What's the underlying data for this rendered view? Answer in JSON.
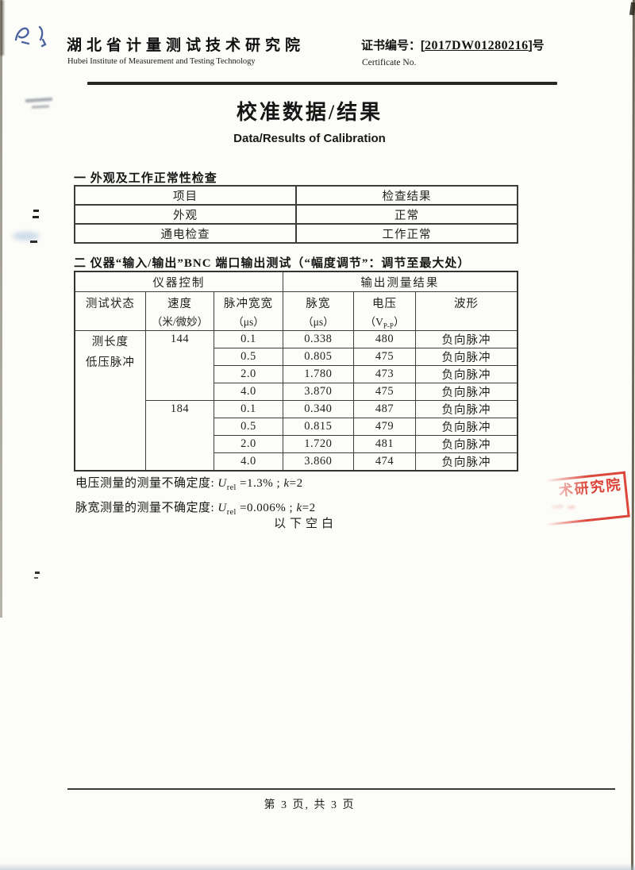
{
  "header": {
    "institute_zh": "湖北省计量测试技术研究院",
    "institute_en": "Hubei Institute of Measurement and Testing Technology",
    "cert_label": "证书编号：",
    "cert_open": "[",
    "cert_number": "2017DW01280216",
    "cert_close": "]",
    "cert_suffix": "号",
    "cert_label_en": "Certificate No."
  },
  "title_zh": "校准数据/结果",
  "title_en": "Data/Results of Calibration",
  "section1": {
    "heading": "一 外观及工作正常性检查",
    "table": {
      "headers": [
        "项目",
        "检查结果"
      ],
      "rows": [
        [
          "外观",
          "正常"
        ],
        [
          "通电检查",
          "工作正常"
        ]
      ]
    }
  },
  "section2": {
    "heading": "二 仪器“输入/输出”BNC 端口输出测试（“幅度调节”：调节至最大处）",
    "table": {
      "group_headers": [
        "仪器控制",
        "输出测量结果"
      ],
      "columns": [
        {
          "label": "测试状态",
          "unit": ""
        },
        {
          "label": "速度",
          "unit": "（米/微妙）"
        },
        {
          "label": "脉冲宽宽",
          "unit": "（μs）"
        },
        {
          "label": "脉宽",
          "unit": "（μs）"
        },
        {
          "label": "电压",
          "unit_prefix": "（V",
          "unit_sub": "P-P",
          "unit_suffix": "）"
        },
        {
          "label": "波形",
          "unit": ""
        }
      ],
      "test_state_lines": [
        "测长度",
        "低压脉冲"
      ],
      "row_groups": [
        {
          "speed": "144",
          "rows": [
            {
              "set_width": "0.1",
              "pulse_width": "0.338",
              "voltage": "480",
              "waveform": "负向脉冲"
            },
            {
              "set_width": "0.5",
              "pulse_width": "0.805",
              "voltage": "475",
              "waveform": "负向脉冲"
            },
            {
              "set_width": "2.0",
              "pulse_width": "1.780",
              "voltage": "473",
              "waveform": "负向脉冲"
            },
            {
              "set_width": "4.0",
              "pulse_width": "3.870",
              "voltage": "475",
              "waveform": "负向脉冲"
            }
          ]
        },
        {
          "speed": "184",
          "rows": [
            {
              "set_width": "0.1",
              "pulse_width": "0.340",
              "voltage": "487",
              "waveform": "负向脉冲"
            },
            {
              "set_width": "0.5",
              "pulse_width": "0.815",
              "voltage": "479",
              "waveform": "负向脉冲"
            },
            {
              "set_width": "2.0",
              "pulse_width": "1.720",
              "voltage": "481",
              "waveform": "负向脉冲"
            },
            {
              "set_width": "4.0",
              "pulse_width": "3.860",
              "voltage": "474",
              "waveform": "负向脉冲"
            }
          ]
        }
      ]
    }
  },
  "uncertainty": {
    "voltage_line": {
      "prefix": "电压测量的测量不确定度: ",
      "symbol": "U",
      "sub": "rel",
      "value": " =1.3%",
      "sep": "  ;  ",
      "k_symbol": "k",
      "k_value": "=2"
    },
    "pulse_line": {
      "prefix": "脉宽测量的测量不确定度: ",
      "symbol": "U",
      "sub": "rel",
      "value": " =0.006%",
      "sep": "  ;  ",
      "k_symbol": "k",
      "k_value": "=2"
    }
  },
  "blank_note": "以下空白",
  "footer": {
    "page_info": "第 3 页, 共 3 页"
  },
  "stamp": {
    "visible_text": "术研究院",
    "color": "#d93327"
  }
}
